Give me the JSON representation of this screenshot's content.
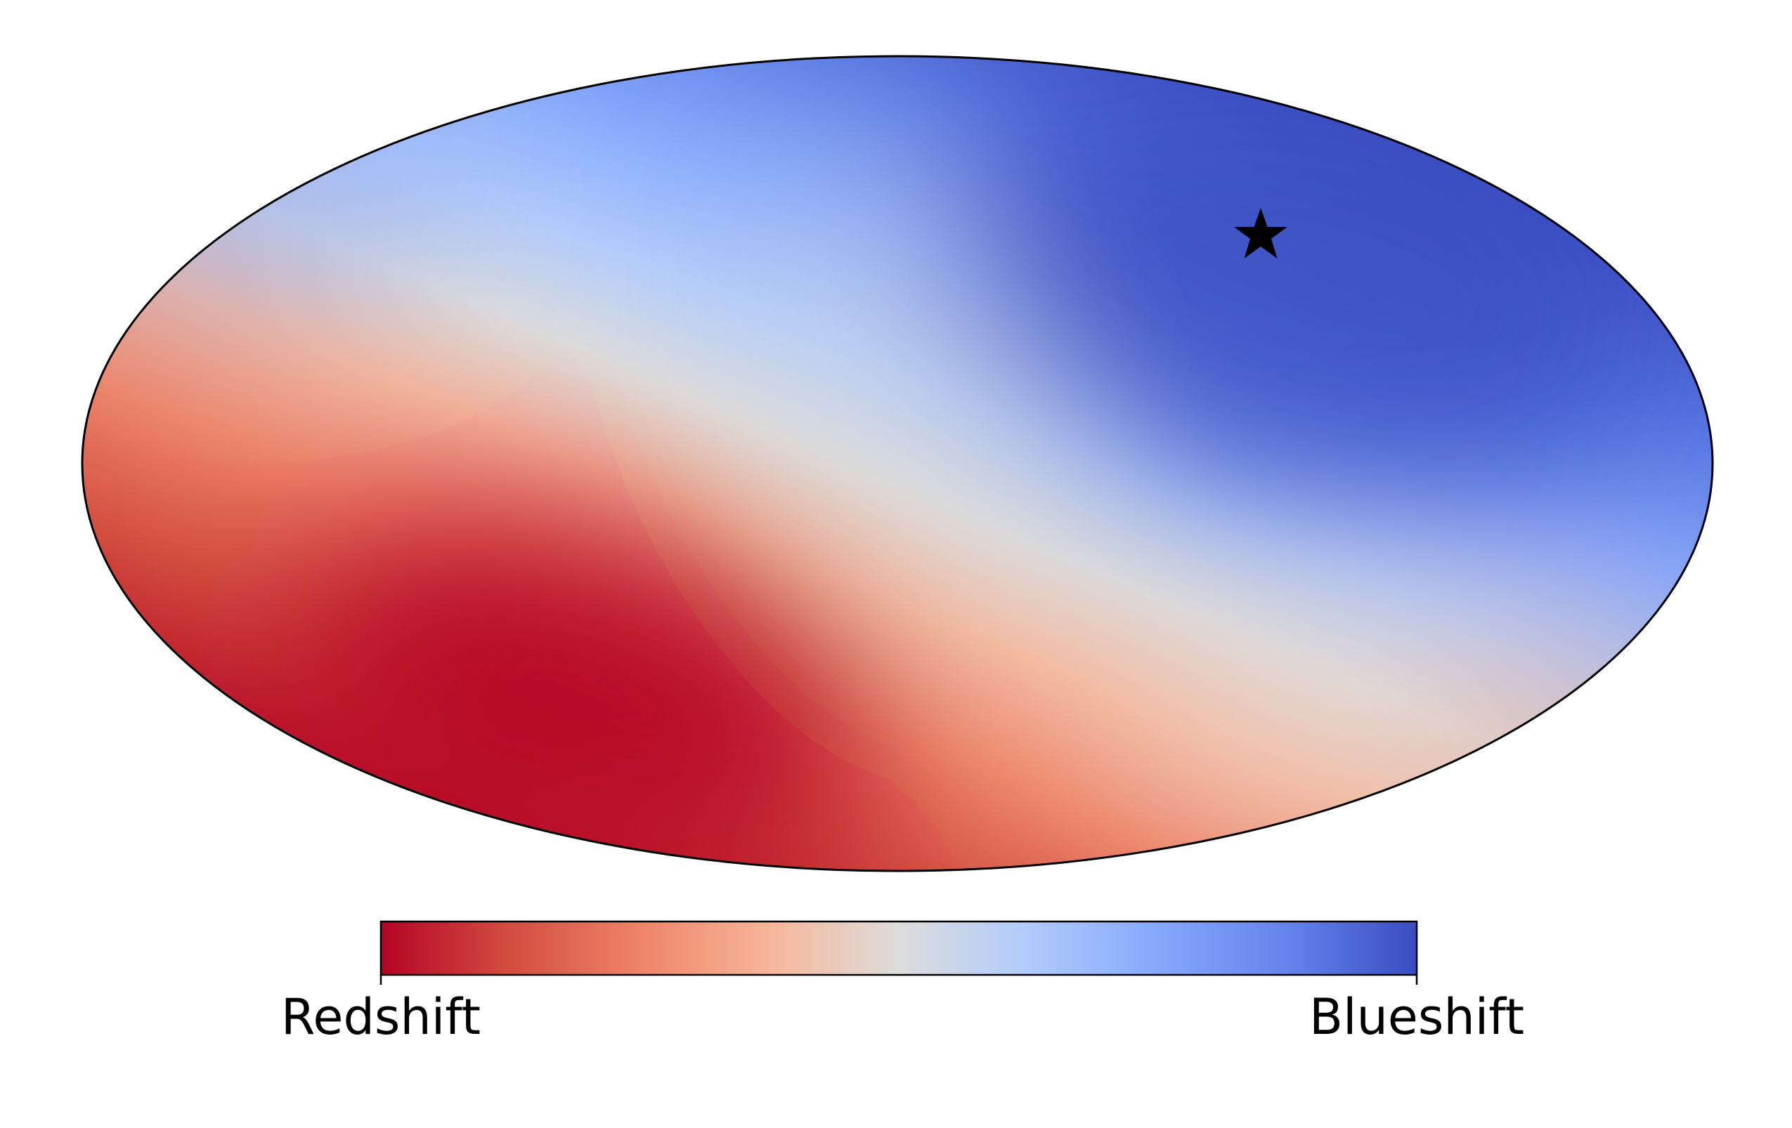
{
  "chart_data": {
    "type": "heatmap",
    "projection": "mollweide",
    "title": "",
    "colormap": "coolwarm (reversed)",
    "colors": {
      "red_end": "#b40426",
      "mid": "#dddcdc",
      "blue_end": "#3b4cc0",
      "outline": "#000000",
      "star": "#000000"
    },
    "colorbar": {
      "orientation": "horizontal",
      "placement": "bottom",
      "labels": {
        "left": "Redshift",
        "right": "Blueshift"
      }
    },
    "pattern": "dipole",
    "extremes": {
      "redshift_peak": "lower-left of map",
      "blueshift_peak": "upper-right of map"
    },
    "marker": {
      "shape": "star",
      "location": "near the blueshift maximum, upper-right of map"
    }
  }
}
